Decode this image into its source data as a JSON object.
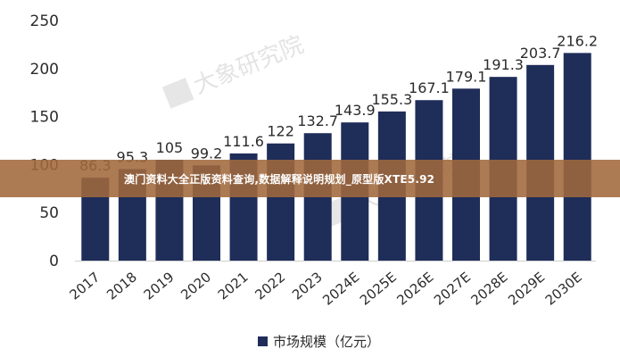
{
  "banner": {
    "text": "澳门资料大全正版资料查询,数据解释说明规划_原型版XTE5.92"
  },
  "watermark": {
    "text": "大象研究院"
  },
  "chart_data": {
    "type": "bar",
    "categories": [
      "2017",
      "2018",
      "2019",
      "2020",
      "2021",
      "2022",
      "2023",
      "2024E",
      "2025E",
      "2026E",
      "2027E",
      "2028E",
      "2029E",
      "2030E"
    ],
    "series": [
      {
        "name": "市场规模（亿元）",
        "values": [
          86.3,
          95.3,
          105,
          99.2,
          111.6,
          122,
          132.7,
          143.9,
          155.3,
          167.1,
          179.1,
          191.3,
          203.7,
          216.2
        ],
        "labels": [
          "86.3",
          "95.3",
          "105",
          "99.2",
          "111.6",
          "122",
          "132.7",
          "143.9",
          "155.3",
          "167.1",
          "179.1",
          "191.3",
          "203.7",
          "216.2"
        ]
      }
    ],
    "yticks": [
      "0",
      "50",
      "100",
      "150",
      "200",
      "250"
    ],
    "ylim": [
      0,
      250
    ],
    "color": "#1f2d59",
    "legend_position": "bottom-center",
    "grid": false
  }
}
